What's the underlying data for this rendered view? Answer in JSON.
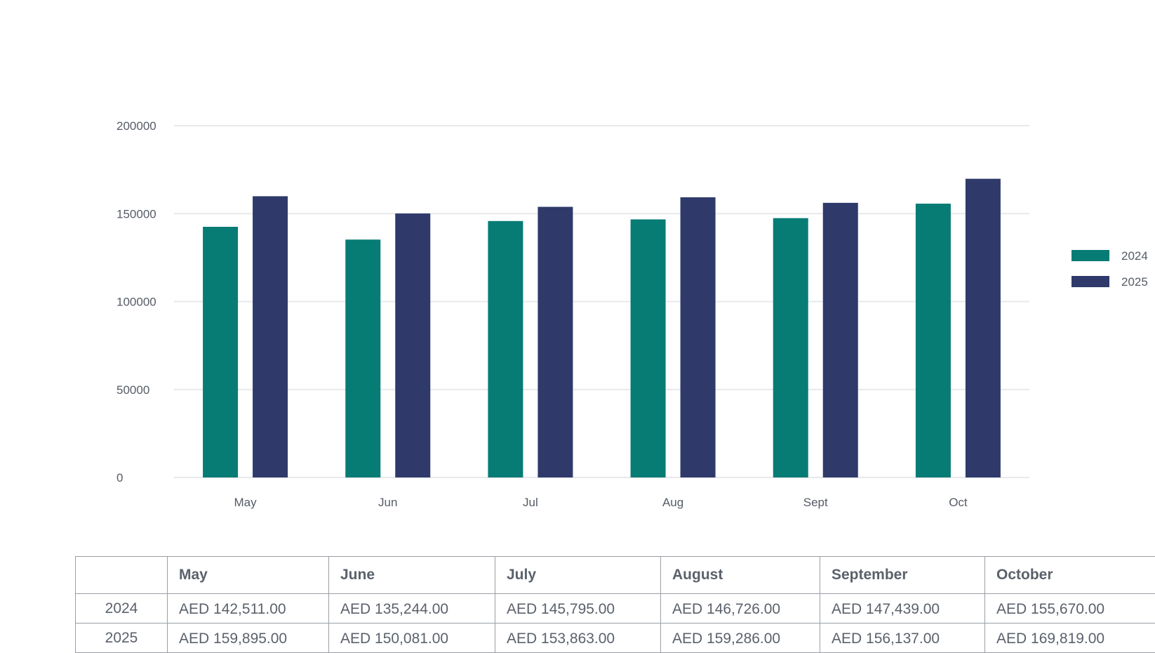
{
  "chart_data": {
    "type": "bar",
    "categories": [
      "May",
      "Jun",
      "Jul",
      "Aug",
      "Sept",
      "Oct"
    ],
    "series": [
      {
        "name": "2024",
        "color": "#077c75",
        "values": [
          142511,
          135244,
          145795,
          146726,
          147439,
          155670
        ]
      },
      {
        "name": "2025",
        "color": "#2f3a6b",
        "values": [
          159895,
          150081,
          153863,
          159286,
          156137,
          169819
        ]
      }
    ],
    "yticks": [
      0,
      50000,
      100000,
      150000,
      200000
    ],
    "ylim": [
      0,
      200000
    ],
    "grid": true,
    "gridColor": "#e7e8ec",
    "legend": "right",
    "title": "",
    "xlabel": "",
    "ylabel": ""
  },
  "table": {
    "headers": [
      "",
      "May",
      "June",
      "July",
      "August",
      "September",
      "October"
    ],
    "rows": [
      {
        "label": "2024",
        "cells": [
          "AED 142,511.00",
          "AED 135,244.00",
          "AED 145,795.00",
          "AED 146,726.00",
          "AED 147,439.00",
          "AED 155,670.00"
        ]
      },
      {
        "label": "2025",
        "cells": [
          "AED 159,895.00",
          "AED 150,081.00",
          "AED 153,863.00",
          "AED 159,286.00",
          "AED 156,137.00",
          "AED 169,819.00"
        ]
      }
    ]
  }
}
